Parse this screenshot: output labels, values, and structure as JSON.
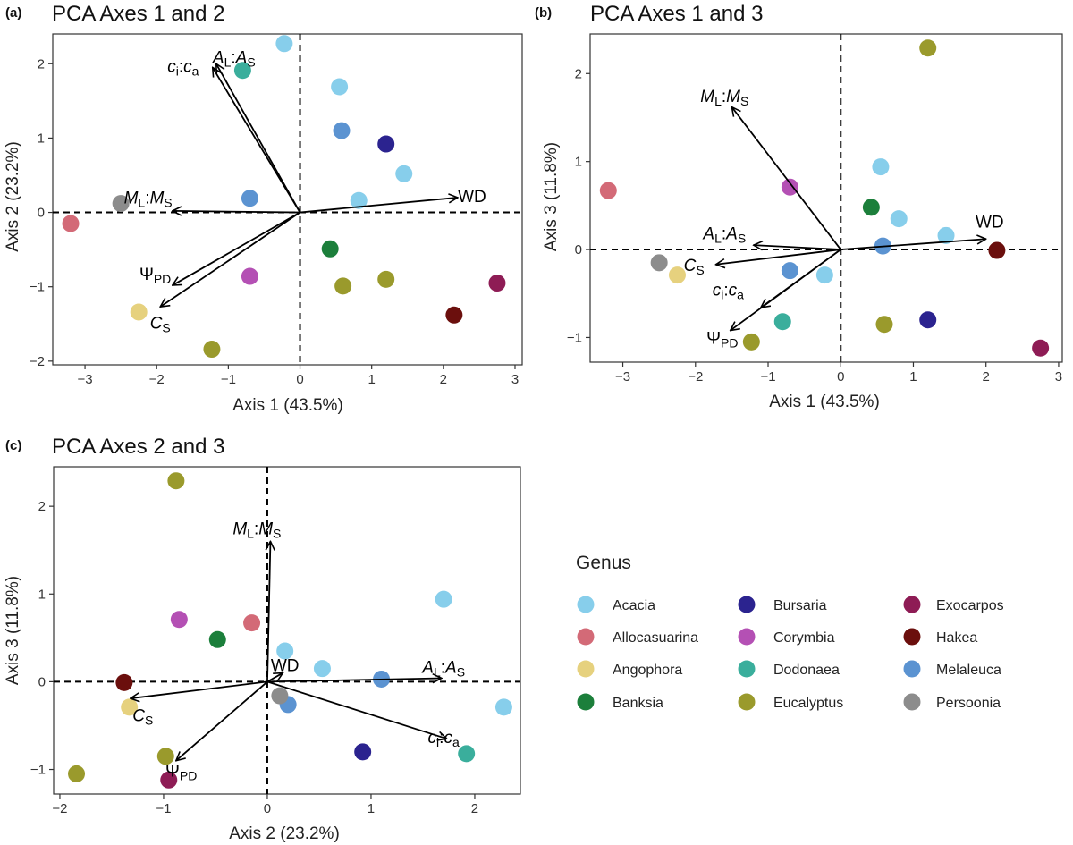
{
  "legend": {
    "title": "Genus",
    "items": [
      {
        "name": "Acacia",
        "color": "#87CEEB"
      },
      {
        "name": "Allocasuarina",
        "color": "#D36A77"
      },
      {
        "name": "Angophora",
        "color": "#E6D17E"
      },
      {
        "name": "Banksia",
        "color": "#1C7F3B"
      },
      {
        "name": "Bursaria",
        "color": "#2B238F"
      },
      {
        "name": "Corymbia",
        "color": "#B450B4"
      },
      {
        "name": "Dodonaea",
        "color": "#3AAE9C"
      },
      {
        "name": "Eucalyptus",
        "color": "#9A9A2C"
      },
      {
        "name": "Exocarpos",
        "color": "#8E1C55"
      },
      {
        "name": "Hakea",
        "color": "#6B0F0D"
      },
      {
        "name": "Melaleuca",
        "color": "#5B93D1"
      },
      {
        "name": "Persoonia",
        "color": "#8C8C8C"
      }
    ]
  },
  "chart_data": [
    {
      "type": "scatter",
      "panel": "(a)",
      "title": "PCA Axes 1 and 2",
      "xlabel": "Axis 1 (43.5%)",
      "ylabel": "Axis 2 (23.2%)",
      "xlim": [
        -3.45,
        3.1
      ],
      "ylim": [
        -2.05,
        2.4
      ],
      "xticks": [
        -3,
        -2,
        -1,
        0,
        1,
        2,
        3
      ],
      "yticks": [
        -2,
        -1,
        0,
        1,
        2
      ],
      "points": [
        {
          "genus": "Acacia",
          "x": -0.22,
          "y": 2.27
        },
        {
          "genus": "Acacia",
          "x": 0.55,
          "y": 1.69
        },
        {
          "genus": "Acacia",
          "x": 1.45,
          "y": 0.52
        },
        {
          "genus": "Acacia",
          "x": 0.82,
          "y": 0.16
        },
        {
          "genus": "Dodonaea",
          "x": -0.8,
          "y": 1.91
        },
        {
          "genus": "Melaleuca",
          "x": 0.58,
          "y": 1.1
        },
        {
          "genus": "Melaleuca",
          "x": -0.7,
          "y": 0.19
        },
        {
          "genus": "Bursaria",
          "x": 1.2,
          "y": 0.92
        },
        {
          "genus": "Persoonia",
          "x": -2.5,
          "y": 0.12
        },
        {
          "genus": "Allocasuarina",
          "x": -3.2,
          "y": -0.15
        },
        {
          "genus": "Banksia",
          "x": 0.42,
          "y": -0.49
        },
        {
          "genus": "Eucalyptus",
          "x": 0.6,
          "y": -0.99
        },
        {
          "genus": "Eucalyptus",
          "x": 1.2,
          "y": -0.9
        },
        {
          "genus": "Eucalyptus",
          "x": -1.23,
          "y": -1.84
        },
        {
          "genus": "Corymbia",
          "x": -0.7,
          "y": -0.86
        },
        {
          "genus": "Angophora",
          "x": -2.25,
          "y": -1.34
        },
        {
          "genus": "Hakea",
          "x": 2.15,
          "y": -1.38
        },
        {
          "genus": "Exocarpos",
          "x": 2.75,
          "y": -0.95
        }
      ],
      "vectors": [
        {
          "label": "ci:ca",
          "sub1": "i",
          "sub2": "a",
          "x": -1.22,
          "y": 1.95,
          "lx": -1.63,
          "ly": 1.95
        },
        {
          "label": "AL:AS",
          "sub1": "L",
          "sub2": "S",
          "x": -1.17,
          "y": 2.0,
          "lx": -0.92,
          "ly": 2.07
        },
        {
          "label": "ML:MS",
          "sub1": "L",
          "sub2": "S",
          "x": -1.78,
          "y": 0.02,
          "lx": -2.12,
          "ly": 0.18
        },
        {
          "label": "WD",
          "sub1": "",
          "sub2": "",
          "x": 2.2,
          "y": 0.2,
          "lx": 2.4,
          "ly": 0.2
        },
        {
          "label": "ΨPD",
          "sub1": "PD",
          "sub2": "",
          "x": -1.78,
          "y": -0.98,
          "lx": -2.02,
          "ly": -0.85
        },
        {
          "label": "CS",
          "sub1": "S",
          "sub2": "",
          "x": -1.95,
          "y": -1.27,
          "lx": -1.95,
          "ly": -1.5
        }
      ]
    },
    {
      "type": "scatter",
      "panel": "(b)",
      "title": "PCA Axes 1 and 3",
      "xlabel": "Axis 1 (43.5%)",
      "ylabel": "Axis 3 (11.8%)",
      "xlim": [
        -3.45,
        3.05
      ],
      "ylim": [
        -1.28,
        2.45
      ],
      "xticks": [
        -3,
        -2,
        -1,
        0,
        1,
        2,
        3
      ],
      "yticks": [
        -1,
        0,
        1,
        2
      ],
      "points": [
        {
          "genus": "Eucalyptus",
          "x": 1.2,
          "y": 2.29
        },
        {
          "genus": "Acacia",
          "x": 0.55,
          "y": 0.94
        },
        {
          "genus": "Acacia",
          "x": 0.8,
          "y": 0.35
        },
        {
          "genus": "Acacia",
          "x": 1.45,
          "y": 0.16
        },
        {
          "genus": "Acacia",
          "x": -0.22,
          "y": -0.29
        },
        {
          "genus": "Allocasuarina",
          "x": -3.2,
          "y": 0.67
        },
        {
          "genus": "Corymbia",
          "x": -0.7,
          "y": 0.71
        },
        {
          "genus": "Banksia",
          "x": 0.42,
          "y": 0.48
        },
        {
          "genus": "Melaleuca",
          "x": 0.58,
          "y": 0.04
        },
        {
          "genus": "Melaleuca",
          "x": -0.7,
          "y": -0.24
        },
        {
          "genus": "Hakea",
          "x": 2.15,
          "y": -0.01
        },
        {
          "genus": "Persoonia",
          "x": -2.5,
          "y": -0.15
        },
        {
          "genus": "Angophora",
          "x": -2.25,
          "y": -0.29
        },
        {
          "genus": "Dodonaea",
          "x": -0.8,
          "y": -0.82
        },
        {
          "genus": "Eucalyptus",
          "x": 0.6,
          "y": -0.85
        },
        {
          "genus": "Eucalyptus",
          "x": -1.23,
          "y": -1.05
        },
        {
          "genus": "Bursaria",
          "x": 1.2,
          "y": -0.8
        },
        {
          "genus": "Exocarpos",
          "x": 2.75,
          "y": -1.12
        }
      ],
      "vectors": [
        {
          "label": "ML:MS",
          "sub1": "L",
          "sub2": "S",
          "x": -1.5,
          "y": 1.62,
          "lx": -1.6,
          "ly": 1.73
        },
        {
          "label": "AL:AS",
          "sub1": "L",
          "sub2": "S",
          "x": -1.2,
          "y": 0.05,
          "lx": -1.6,
          "ly": 0.17
        },
        {
          "label": "WD",
          "sub1": "",
          "sub2": "",
          "x": 2.0,
          "y": 0.12,
          "lx": 2.05,
          "ly": 0.3
        },
        {
          "label": "CS",
          "sub1": "S",
          "sub2": "",
          "x": -1.72,
          "y": -0.17,
          "lx": -2.02,
          "ly": -0.19
        },
        {
          "label": "ci:ca",
          "sub1": "i",
          "sub2": "a",
          "x": -1.1,
          "y": -0.66,
          "lx": -1.55,
          "ly": -0.47
        },
        {
          "label": "ΨPD",
          "sub1": "PD",
          "sub2": "",
          "x": -1.52,
          "y": -0.92,
          "lx": -1.63,
          "ly": -1.02
        }
      ]
    },
    {
      "type": "scatter",
      "panel": "(c)",
      "title": "PCA Axes 2 and 3",
      "xlabel": "Axis 2 (23.2%)",
      "ylabel": "Axis 3 (11.8%)",
      "xlim": [
        -2.06,
        2.44
      ],
      "ylim": [
        -1.28,
        2.45
      ],
      "xticks": [
        -2,
        -1,
        0,
        1,
        2
      ],
      "yticks": [
        -1,
        0,
        1,
        2
      ],
      "points": [
        {
          "genus": "Eucalyptus",
          "x": -0.88,
          "y": 2.29
        },
        {
          "genus": "Acacia",
          "x": 1.7,
          "y": 0.94
        },
        {
          "genus": "Acacia",
          "x": 0.17,
          "y": 0.35
        },
        {
          "genus": "Acacia",
          "x": 0.53,
          "y": 0.15
        },
        {
          "genus": "Acacia",
          "x": 2.28,
          "y": -0.29
        },
        {
          "genus": "Corymbia",
          "x": -0.85,
          "y": 0.71
        },
        {
          "genus": "Allocasuarina",
          "x": -0.15,
          "y": 0.67
        },
        {
          "genus": "Banksia",
          "x": -0.48,
          "y": 0.48
        },
        {
          "genus": "Melaleuca",
          "x": 1.1,
          "y": 0.03
        },
        {
          "genus": "Melaleuca",
          "x": 0.2,
          "y": -0.26
        },
        {
          "genus": "Hakea",
          "x": -1.38,
          "y": -0.01
        },
        {
          "genus": "Persoonia",
          "x": 0.12,
          "y": -0.16
        },
        {
          "genus": "Angophora",
          "x": -1.33,
          "y": -0.29
        },
        {
          "genus": "Bursaria",
          "x": 0.92,
          "y": -0.8
        },
        {
          "genus": "Dodonaea",
          "x": 1.92,
          "y": -0.82
        },
        {
          "genus": "Eucalyptus",
          "x": -0.98,
          "y": -0.85
        },
        {
          "genus": "Eucalyptus",
          "x": -1.84,
          "y": -1.05
        },
        {
          "genus": "Exocarpos",
          "x": -0.95,
          "y": -1.12
        }
      ],
      "vectors": [
        {
          "label": "ML:MS",
          "sub1": "L",
          "sub2": "S",
          "x": 0.03,
          "y": 1.6,
          "lx": -0.1,
          "ly": 1.73
        },
        {
          "label": "WD",
          "sub1": "",
          "sub2": "",
          "x": 0.15,
          "y": 0.1,
          "lx": 0.17,
          "ly": 0.17
        },
        {
          "label": "AL:AS",
          "sub1": "L",
          "sub2": "S",
          "x": 1.68,
          "y": 0.04,
          "lx": 1.7,
          "ly": 0.15
        },
        {
          "label": "ci:ca",
          "sub1": "i",
          "sub2": "a",
          "x": 1.73,
          "y": -0.65,
          "lx": 1.7,
          "ly": -0.65
        },
        {
          "label": "CS",
          "sub1": "S",
          "sub2": "",
          "x": -1.32,
          "y": -0.19,
          "lx": -1.2,
          "ly": -0.4
        },
        {
          "label": "ΨPD",
          "sub1": "PD",
          "sub2": "",
          "x": -0.88,
          "y": -0.9,
          "lx": -0.83,
          "ly": -1.03
        }
      ]
    }
  ]
}
